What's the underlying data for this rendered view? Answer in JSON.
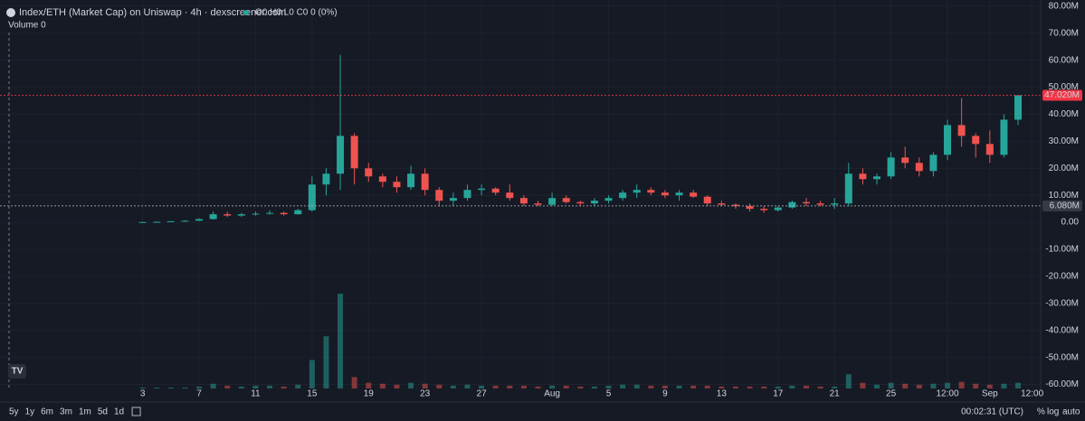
{
  "header": {
    "title": "Index/ETH (Market Cap) on Uniswap · 4h · dexscreener.com",
    "ohlc": "O0 H0 L0 C0 0 (0%)",
    "volume": "Volume 0"
  },
  "chart_data": {
    "type": "candlestick",
    "up_color": "#26a69a",
    "down_color": "#ef5350",
    "x": [
      0,
      1,
      2,
      3,
      4,
      5,
      6,
      7,
      8,
      9,
      10,
      11,
      12,
      13,
      14,
      15,
      16,
      17,
      18,
      19,
      20,
      21,
      22,
      23,
      24,
      25,
      26,
      27,
      28,
      29,
      30,
      31,
      32,
      33,
      34,
      35,
      36,
      37,
      38,
      39,
      40,
      41,
      42,
      43,
      44,
      45,
      46,
      47,
      48,
      49,
      50,
      51,
      52,
      53,
      54,
      55,
      56,
      57,
      58,
      59,
      60,
      61,
      62
    ],
    "open": [
      0,
      0.1,
      0.2,
      0.4,
      0.6,
      1.2,
      3,
      2.5,
      3,
      3.2,
      3.5,
      3,
      4.5,
      14,
      18,
      32,
      20,
      17,
      15,
      13,
      18,
      12,
      8,
      9,
      12,
      12.5,
      11,
      9,
      7,
      6.5,
      9,
      7.5,
      7,
      8,
      9,
      11,
      12,
      11,
      10,
      11,
      9.5,
      7,
      6.5,
      6,
      5,
      4.5,
      5.5,
      7.5,
      7,
      6.5,
      7,
      18,
      16,
      17,
      24,
      22,
      19,
      25,
      36,
      32,
      29,
      25,
      38
    ],
    "high": [
      0.2,
      0.3,
      0.5,
      0.8,
      1.5,
      4,
      4,
      3.5,
      4,
      4.5,
      4,
      5,
      17,
      20,
      62,
      33,
      22,
      18,
      17,
      21,
      20,
      13,
      11,
      14,
      14,
      13,
      14,
      10,
      8,
      11,
      10,
      8,
      9,
      10,
      12,
      14,
      13,
      12,
      12,
      12,
      10,
      8,
      7,
      7,
      6,
      6,
      8,
      9,
      8,
      9,
      22,
      20,
      18,
      26,
      28,
      24,
      26,
      38,
      46,
      33,
      34,
      40,
      47
    ],
    "low": [
      0,
      0,
      0.1,
      0.3,
      0.5,
      1,
      2,
      2,
      2.5,
      2.8,
      2.5,
      2.8,
      4,
      10,
      12,
      14,
      15,
      13,
      11,
      12,
      10,
      6,
      6,
      8,
      10,
      10,
      8,
      6,
      6,
      6,
      7,
      6,
      6,
      7,
      8,
      9,
      10,
      9,
      8,
      9,
      6,
      6,
      5,
      4,
      3.5,
      4,
      5,
      6,
      6,
      5,
      6,
      14,
      14,
      16,
      20,
      17,
      17,
      23,
      28,
      24,
      22,
      24,
      36
    ],
    "close": [
      0.1,
      0.2,
      0.4,
      0.6,
      1.2,
      3,
      2.5,
      3,
      3.2,
      3.5,
      3,
      4.5,
      14,
      18,
      32,
      20,
      17,
      15,
      13,
      18,
      12,
      8,
      9,
      12,
      12.5,
      11,
      9,
      7,
      6.5,
      9,
      7.5,
      7,
      8,
      9,
      11,
      12,
      11,
      10,
      11,
      9.5,
      7,
      6.5,
      6,
      5,
      4.5,
      5.5,
      7.5,
      7,
      6.5,
      7,
      18,
      16,
      17,
      24,
      22,
      19,
      25,
      36,
      32,
      29,
      25,
      38,
      47.02
    ],
    "volume": [
      1,
      1,
      1,
      1,
      2,
      5,
      3,
      2,
      3,
      3,
      2,
      4,
      30,
      55,
      100,
      12,
      6,
      5,
      4,
      6,
      5,
      4,
      3,
      4,
      3,
      3,
      3,
      3,
      2,
      3,
      3,
      2,
      2,
      3,
      4,
      4,
      3,
      3,
      3,
      3,
      3,
      2,
      2,
      2,
      2,
      2,
      3,
      3,
      2,
      2,
      15,
      6,
      4,
      6,
      5,
      4,
      5,
      6,
      7,
      5,
      4,
      5,
      6
    ],
    "xlim": [
      -10.1,
      63.6
    ],
    "ylim": [
      -61.5,
      82.3
    ],
    "xticks": [
      {
        "value": 0,
        "label": "3"
      },
      {
        "value": 4,
        "label": "7"
      },
      {
        "value": 8,
        "label": "11"
      },
      {
        "value": 12,
        "label": "15"
      },
      {
        "value": 16,
        "label": "19"
      },
      {
        "value": 20,
        "label": "23"
      },
      {
        "value": 24,
        "label": "27"
      },
      {
        "value": 29,
        "label": "Aug"
      },
      {
        "value": 33,
        "label": "5"
      },
      {
        "value": 37,
        "label": "9"
      },
      {
        "value": 41,
        "label": "13"
      },
      {
        "value": 45,
        "label": "17"
      },
      {
        "value": 49,
        "label": "21"
      },
      {
        "value": 53,
        "label": "25"
      },
      {
        "value": 57,
        "label": "12:00"
      },
      {
        "value": 60,
        "label": "Sep"
      },
      {
        "value": 63,
        "label": "12:00"
      }
    ],
    "yticks": [
      {
        "value": 80,
        "label": "80.00M"
      },
      {
        "value": 70,
        "label": "70.00M"
      },
      {
        "value": 60,
        "label": "60.00M"
      },
      {
        "value": 50,
        "label": "50.00M"
      },
      {
        "value": 40,
        "label": "40.00M"
      },
      {
        "value": 30,
        "label": "30.00M"
      },
      {
        "value": 20,
        "label": "20.00M"
      },
      {
        "value": 10,
        "label": "10.00M"
      },
      {
        "value": 0,
        "label": "0.00"
      },
      {
        "value": -10,
        "label": "-10.00M"
      },
      {
        "value": -20,
        "label": "-20.00M"
      },
      {
        "value": -30,
        "label": "-30.00M"
      },
      {
        "value": -40,
        "label": "-40.00M"
      },
      {
        "value": -50,
        "label": "-50.00M"
      },
      {
        "value": -60,
        "label": "-60.00M"
      }
    ],
    "price_lines": [
      {
        "value": 47.02,
        "label": "47.020M",
        "color": "#f23645"
      },
      {
        "value": 6.08,
        "label": "6.080M",
        "color": "#b2b5be"
      }
    ],
    "grid": true
  },
  "toolbar": {
    "ranges": [
      "5y",
      "1y",
      "6m",
      "3m",
      "1m",
      "5d",
      "1d"
    ],
    "time": "00:02:31 (UTC)",
    "percent": "%",
    "log": "log",
    "auto": "auto"
  }
}
